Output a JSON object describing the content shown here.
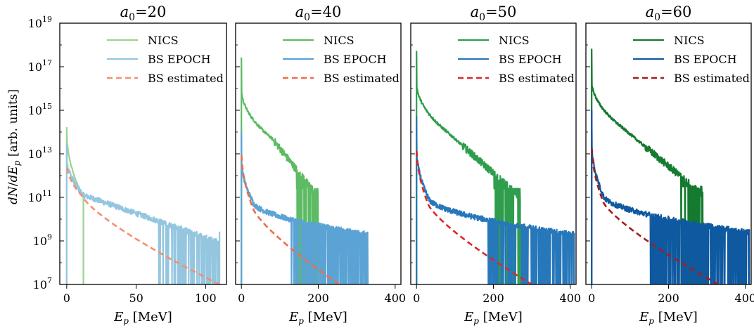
{
  "chart_data": {
    "type": "line",
    "ylabel": "dN/dE_p [arb. units]",
    "ylabel_parts": {
      "d1": "d",
      "N": "N",
      "slash": "/",
      "d2": "d",
      "E": "E",
      "sub": "p",
      "units": " [arb. units]"
    },
    "xlabel_parts": {
      "E": "E",
      "sub": "p",
      "units": " [MeV]"
    },
    "y_scale": "log",
    "ylim": [
      10000000.0,
      1e+19
    ],
    "y_ticks": [
      {
        "exp": 7,
        "base": "10",
        "power": "7"
      },
      {
        "exp": 9,
        "base": "10",
        "power": "9"
      },
      {
        "exp": 11,
        "base": "10",
        "power": "11"
      },
      {
        "exp": 13,
        "base": "10",
        "power": "13"
      },
      {
        "exp": 15,
        "base": "10",
        "power": "15"
      },
      {
        "exp": 17,
        "base": "10",
        "power": "17"
      },
      {
        "exp": 19,
        "base": "10",
        "power": "19"
      }
    ],
    "legend_position": "top-right",
    "panels": [
      {
        "title_var": "a",
        "title_sub": "0",
        "title_val": "=20",
        "xlim": [
          -5,
          115
        ],
        "x_ticks": [
          0,
          50,
          100
        ],
        "colors": {
          "nics": "#9ad58e",
          "bs": "#94c6e0",
          "est": "#f5906e"
        },
        "legend": [
          "NICS",
          "BS EPOCH",
          "BS estimated"
        ],
        "nics": {
          "peak_exp": 14.2,
          "start_exp": 14.0,
          "decay": 1.6,
          "cutoff_E": 12,
          "end_exp": 11.0
        },
        "bs": {
          "peak_exp": 13.5,
          "start_exp": 12.8,
          "knee_E": 12,
          "knee_exp": 11.1,
          "tail_slope": 0.018,
          "tail_max_E": 110,
          "spike_start_E": 66
        },
        "est": {
          "start_exp": 12.6,
          "knee_E": 12,
          "knee_exp": 11.0,
          "end_E": 110,
          "end_exp": 7.0
        }
      },
      {
        "title_var": "a",
        "title_sub": "0",
        "title_val": "=40",
        "xlim": [
          -15,
          415
        ],
        "x_ticks": [
          0,
          200,
          400
        ],
        "colors": {
          "nics": "#5dbb63",
          "bs": "#5ba3d5",
          "est": "#f26b48"
        },
        "legend": [
          "NICS",
          "BS EPOCH",
          "BS estimated"
        ],
        "nics": {
          "peak_exp": 17.4,
          "start_exp": 16.0,
          "mid_E": 80,
          "mid_exp": 13.7,
          "tail_end_E": 200,
          "tail_end_exp": 11.0,
          "spike_start_E": 140
        },
        "bs": {
          "peak_exp": 14.0,
          "start_exp": 12.8,
          "mid_E": 30,
          "mid_exp": 10.8,
          "tail_end_E": 330,
          "tail_end_exp": 9.3,
          "spike_start_E": 120
        },
        "est": {
          "start_exp": 13.2,
          "mid_E": 30,
          "mid_exp": 10.5,
          "end_E": 255,
          "end_exp": 7.0
        }
      },
      {
        "title_var": "a",
        "title_sub": "0",
        "title_val": "=50",
        "xlim": [
          -15,
          415
        ],
        "x_ticks": [
          0,
          200,
          400
        ],
        "colors": {
          "nics": "#2e9e4c",
          "bs": "#2777bb",
          "est": "#d92a28"
        },
        "legend": [
          "NICS",
          "BS EPOCH",
          "BS estimated"
        ],
        "nics": {
          "peak_exp": 17.7,
          "start_exp": 16.3,
          "mid_E": 80,
          "mid_exp": 14.0,
          "tail_end_E": 270,
          "tail_end_exp": 11.0,
          "spike_start_E": 200
        },
        "bs": {
          "peak_exp": 14.7,
          "start_exp": 13.3,
          "mid_E": 30,
          "mid_exp": 11.0,
          "tail_end_E": 410,
          "tail_end_exp": 9.3,
          "spike_start_E": 185
        },
        "est": {
          "start_exp": 13.4,
          "mid_E": 30,
          "mid_exp": 10.7,
          "end_E": 300,
          "end_exp": 7.0
        }
      },
      {
        "title_var": "a",
        "title_sub": "0",
        "title_val": "=60",
        "xlim": [
          -15,
          415
        ],
        "x_ticks": [
          0,
          200,
          400
        ],
        "colors": {
          "nics": "#147a2f",
          "bs": "#0f59a1",
          "est": "#a51d1d"
        },
        "legend": [
          "NICS",
          "BS EPOCH",
          "BS estimated"
        ],
        "nics": {
          "peak_exp": 17.8,
          "start_exp": 16.4,
          "mid_E": 80,
          "mid_exp": 14.2,
          "tail_end_E": 290,
          "tail_end_exp": 11.1,
          "spike_start_E": 230
        },
        "bs": {
          "peak_exp": 15.0,
          "start_exp": 13.6,
          "mid_E": 30,
          "mid_exp": 11.1,
          "tail_end_E": 410,
          "tail_end_exp": 9.4,
          "spike_start_E": 150
        },
        "est": {
          "start_exp": 13.5,
          "mid_E": 30,
          "mid_exp": 10.8,
          "end_E": 330,
          "end_exp": 7.0
        }
      }
    ]
  }
}
